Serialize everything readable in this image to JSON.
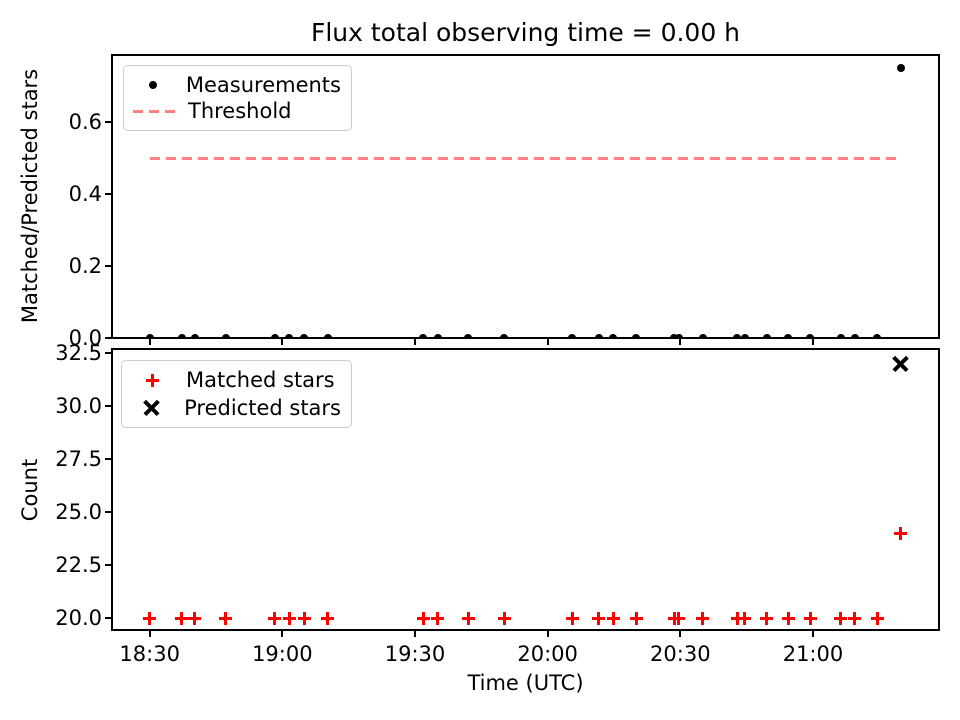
{
  "figure": {
    "background": "#ffffff",
    "spine_color": "#000000"
  },
  "chart_data": [
    {
      "type": "scatter",
      "title": "Flux total observing time = 0.00 h",
      "ylabel": "Matched/Predicted stars",
      "xlabel": "",
      "grid": false,
      "legend_position": "upper left",
      "xlim_hours": [
        18.358,
        21.475
      ],
      "ylim": [
        0.0,
        0.7875
      ],
      "yticks": [
        "0.0",
        "0.2",
        "0.4",
        "0.6"
      ],
      "ytick_values": [
        0.0,
        0.2,
        0.4,
        0.6
      ],
      "xtick_hours": [
        18.5,
        19.0,
        19.5,
        20.0,
        20.5,
        21.0
      ],
      "series": [
        {
          "name": "Measurements",
          "marker": "dot",
          "marker_name": "measurement-point",
          "color": "#000000",
          "x_hours": [
            18.5,
            18.621,
            18.67,
            18.786,
            18.971,
            19.027,
            19.082,
            19.171,
            19.532,
            19.585,
            19.7,
            19.836,
            20.093,
            20.193,
            20.248,
            20.334,
            20.478,
            20.494,
            20.585,
            20.714,
            20.742,
            20.826,
            20.906,
            20.99,
            21.105,
            21.158,
            21.243,
            21.33
          ],
          "y": [
            0,
            0,
            0,
            0,
            0,
            0,
            0,
            0,
            0,
            0,
            0,
            0,
            0,
            0,
            0,
            0,
            0,
            0,
            0,
            0,
            0,
            0,
            0,
            0,
            0,
            0,
            0,
            0.75
          ]
        }
      ],
      "threshold": {
        "name": "Threshold",
        "style": "dashed",
        "color": "#ff8080",
        "y": 0.5,
        "x_start_hours": 18.5,
        "x_end_hours": 21.33
      }
    },
    {
      "type": "scatter",
      "title": "",
      "ylabel": "Count",
      "xlabel": "Time (UTC)",
      "grid": false,
      "legend_position": "upper left",
      "xlim_hours": [
        18.358,
        21.475
      ],
      "ylim": [
        19.45,
        32.7
      ],
      "yticks": [
        "20.0",
        "22.5",
        "25.0",
        "27.5",
        "30.0",
        "32.5"
      ],
      "ytick_values": [
        20.0,
        22.5,
        25.0,
        27.5,
        30.0,
        32.5
      ],
      "xtick_hours": [
        18.5,
        19.0,
        19.5,
        20.0,
        20.5,
        21.0
      ],
      "xtick_labels": [
        "18:30",
        "19:00",
        "19:30",
        "20:00",
        "20:30",
        "21:00"
      ],
      "series": [
        {
          "name": "Matched stars",
          "marker": "plus",
          "marker_name": "matched-stars-point",
          "color": "#ff0000",
          "x_hours": [
            18.5,
            18.621,
            18.67,
            18.786,
            18.971,
            19.027,
            19.082,
            19.171,
            19.532,
            19.585,
            19.7,
            19.836,
            20.093,
            20.193,
            20.248,
            20.334,
            20.478,
            20.494,
            20.585,
            20.714,
            20.742,
            20.826,
            20.906,
            20.99,
            21.105,
            21.158,
            21.243,
            21.33
          ],
          "y": [
            20,
            20,
            20,
            20,
            20,
            20,
            20,
            20,
            20,
            20,
            20,
            20,
            20,
            20,
            20,
            20,
            20,
            20,
            20,
            20,
            20,
            20,
            20,
            20,
            20,
            20,
            20,
            24
          ]
        },
        {
          "name": "Predicted stars",
          "marker": "x",
          "marker_name": "predicted-stars-point",
          "color": "#000000",
          "x_hours": [
            21.33
          ],
          "y": [
            32
          ]
        }
      ]
    }
  ]
}
